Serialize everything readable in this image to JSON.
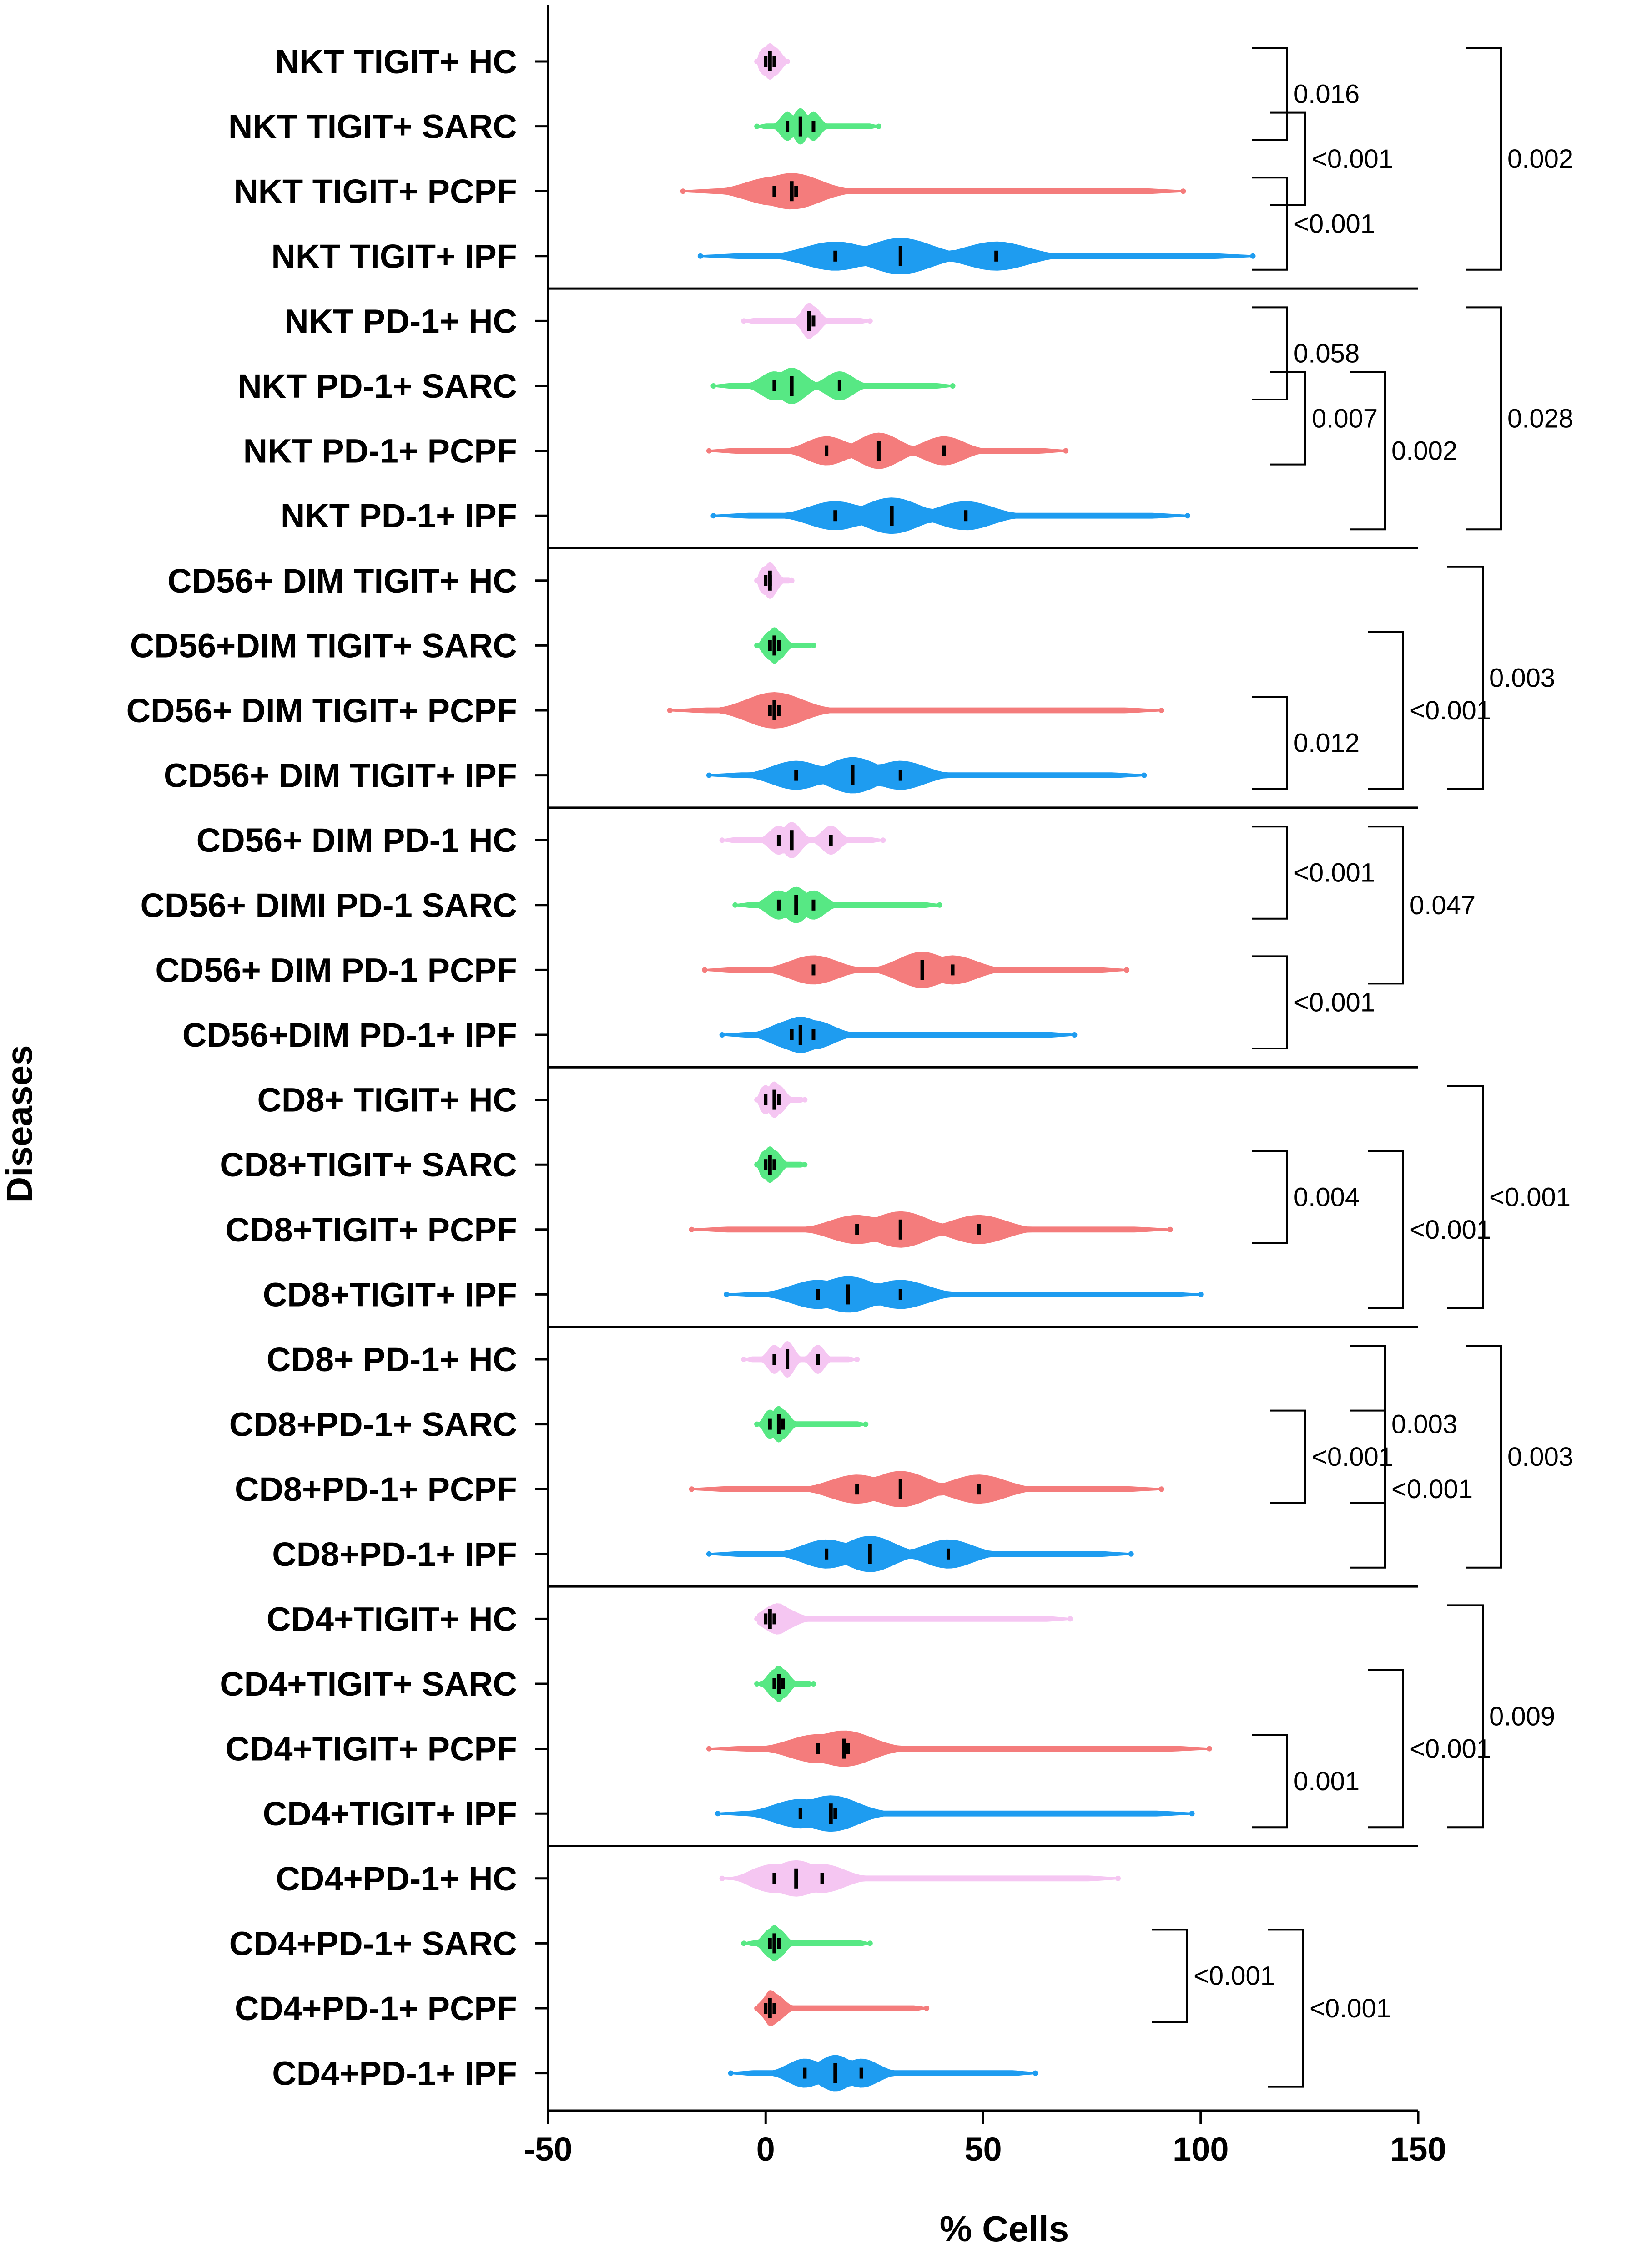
{
  "chart_data": {
    "type": "violin",
    "orientation": "horizontal",
    "xlabel": "% Cells",
    "ylabel": "Diseases",
    "xlim": [
      -50,
      150
    ],
    "xticks": [
      -50,
      0,
      50,
      100,
      150
    ],
    "series_colors": {
      "HC": "#f5c6f2",
      "SARC": "#57e884",
      "PCPF": "#f47c7c",
      "IPF": "#1e9cf0"
    },
    "groups": [
      {
        "name": "NKT TIGIT+",
        "rows": [
          {
            "label": "NKT TIGIT+ HC",
            "series": "HC",
            "range": [
              -2,
              5
            ],
            "q": [
              0,
              1,
              2
            ]
          },
          {
            "label": "NKT TIGIT+ SARC",
            "series": "SARC",
            "range": [
              -2,
              26
            ],
            "q": [
              5,
              8,
              11
            ]
          },
          {
            "label": "NKT TIGIT+ PCPF",
            "series": "PCPF",
            "range": [
              -19,
              96
            ],
            "q": [
              2,
              6,
              7
            ]
          },
          {
            "label": "NKT TIGIT+ IPF",
            "series": "IPF",
            "range": [
              -15,
              112
            ],
            "q": [
              16,
              31,
              53
            ]
          }
        ],
        "comparisons": [
          {
            "rows": [
              0,
              1
            ],
            "p": "0.016"
          },
          {
            "rows": [
              1,
              2
            ],
            "p": "<0.001"
          },
          {
            "rows": [
              2,
              3
            ],
            "p": "<0.001"
          },
          {
            "rows": [
              0,
              3
            ],
            "p": "0.002"
          }
        ]
      },
      {
        "name": "NKT PD-1+",
        "rows": [
          {
            "label": "NKT PD-1+ HC",
            "series": "HC",
            "range": [
              -5,
              24
            ],
            "q": [
              10,
              10,
              11
            ]
          },
          {
            "label": "NKT PD-1+ SARC",
            "series": "SARC",
            "range": [
              -12,
              43
            ],
            "q": [
              2,
              6,
              17
            ]
          },
          {
            "label": "NKT PD-1+ PCPF",
            "series": "PCPF",
            "range": [
              -13,
              69
            ],
            "q": [
              14,
              26,
              41
            ]
          },
          {
            "label": "NKT PD-1+ IPF",
            "series": "IPF",
            "range": [
              -12,
              97
            ],
            "q": [
              16,
              29,
              46
            ]
          }
        ],
        "comparisons": [
          {
            "rows": [
              0,
              1
            ],
            "p": "0.058"
          },
          {
            "rows": [
              1,
              2
            ],
            "p": "0.007"
          },
          {
            "rows": [
              1,
              3
            ],
            "p": "0.002"
          },
          {
            "rows": [
              0,
              3
            ],
            "p": "0.028"
          }
        ]
      },
      {
        "name": "CD56+ DIM TIGIT+",
        "rows": [
          {
            "label": "CD56+ DIM TIGIT+ HC",
            "series": "HC",
            "range": [
              -2,
              6
            ],
            "q": [
              0,
              1,
              1
            ]
          },
          {
            "label": "CD56+DIM TIGIT+ SARC",
            "series": "SARC",
            "range": [
              -2,
              11
            ],
            "q": [
              1,
              2,
              3
            ]
          },
          {
            "label": "CD56+ DIM TIGIT+ PCPF",
            "series": "PCPF",
            "range": [
              -22,
              91
            ],
            "q": [
              1,
              2,
              3
            ]
          },
          {
            "label": "CD56+ DIM TIGIT+ IPF",
            "series": "IPF",
            "range": [
              -13,
              87
            ],
            "q": [
              7,
              20,
              31
            ]
          }
        ],
        "comparisons": [
          {
            "rows": [
              2,
              3
            ],
            "p": "0.012"
          },
          {
            "rows": [
              1,
              3
            ],
            "p": "<0.001"
          },
          {
            "rows": [
              0,
              3
            ],
            "p": "0.003"
          }
        ]
      },
      {
        "name": "CD56+ DIM PD-1",
        "rows": [
          {
            "label": "CD56+ DIM PD-1 HC",
            "series": "HC",
            "range": [
              -10,
              27
            ],
            "q": [
              3,
              6,
              15
            ]
          },
          {
            "label": "CD56+ DIMI PD-1 SARC",
            "series": "SARC",
            "range": [
              -7,
              40
            ],
            "q": [
              3,
              7,
              11
            ]
          },
          {
            "label": "CD56+ DIM PD-1 PCPF",
            "series": "PCPF",
            "range": [
              -14,
              83
            ],
            "q": [
              11,
              36,
              43
            ]
          },
          {
            "label": "CD56+DIM PD-1+ IPF",
            "series": "IPF",
            "range": [
              -10,
              71
            ],
            "q": [
              6,
              8,
              11
            ]
          }
        ],
        "comparisons": [
          {
            "rows": [
              0,
              1
            ],
            "p": "<0.001"
          },
          {
            "rows": [
              0,
              2
            ],
            "p": "0.047"
          },
          {
            "rows": [
              2,
              3
            ],
            "p": "<0.001"
          }
        ]
      },
      {
        "name": "CD8+ TIGIT+",
        "rows": [
          {
            "label": "CD8+ TIGIT+ HC",
            "series": "HC",
            "range": [
              -2,
              9
            ],
            "q": [
              0,
              2,
              3
            ]
          },
          {
            "label": "CD8+TIGIT+ SARC",
            "series": "SARC",
            "range": [
              -2,
              9
            ],
            "q": [
              0,
              1,
              2
            ]
          },
          {
            "label": "CD8+TIGIT+ PCPF",
            "series": "PCPF",
            "range": [
              -17,
              93
            ],
            "q": [
              21,
              31,
              49
            ]
          },
          {
            "label": "CD8+TIGIT+ IPF",
            "series": "IPF",
            "range": [
              -9,
              100
            ],
            "q": [
              12,
              19,
              31
            ]
          }
        ],
        "comparisons": [
          {
            "rows": [
              1,
              2
            ],
            "p": "0.004"
          },
          {
            "rows": [
              1,
              3
            ],
            "p": "<0.001"
          },
          {
            "rows": [
              0,
              3
            ],
            "p": "<0.001"
          }
        ]
      },
      {
        "name": "CD8+ PD-1+",
        "rows": [
          {
            "label": "CD8+ PD-1+ HC",
            "series": "HC",
            "range": [
              -5,
              21
            ],
            "q": [
              2,
              5,
              12
            ]
          },
          {
            "label": "CD8+PD-1+ SARC",
            "series": "SARC",
            "range": [
              -2,
              23
            ],
            "q": [
              1,
              3,
              4
            ]
          },
          {
            "label": "CD8+PD-1+ PCPF",
            "series": "PCPF",
            "range": [
              -17,
              91
            ],
            "q": [
              21,
              31,
              49
            ]
          },
          {
            "label": "CD8+PD-1+ IPF",
            "series": "IPF",
            "range": [
              -13,
              84
            ],
            "q": [
              14,
              24,
              42
            ]
          }
        ],
        "comparisons": [
          {
            "rows": [
              1,
              3
            ],
            "p": "<0.001"
          },
          {
            "rows": [
              1,
              2
            ],
            "p": "<0.001"
          },
          {
            "rows": [
              0,
              2
            ],
            "p": "0.003"
          },
          {
            "rows": [
              0,
              3
            ],
            "p": "0.003"
          }
        ]
      },
      {
        "name": "CD4+TIGIT+",
        "rows": [
          {
            "label": "CD4+TIGIT+ HC",
            "series": "HC",
            "range": [
              -2,
              70
            ],
            "q": [
              0,
              1,
              2
            ]
          },
          {
            "label": "CD4+TIGIT+ SARC",
            "series": "SARC",
            "range": [
              -2,
              11
            ],
            "q": [
              2,
              3,
              4
            ]
          },
          {
            "label": "CD4+TIGIT+ PCPF",
            "series": "PCPF",
            "range": [
              -13,
              102
            ],
            "q": [
              12,
              18,
              19
            ]
          },
          {
            "label": "CD4+TIGIT+ IPF",
            "series": "IPF",
            "range": [
              -11,
              98
            ],
            "q": [
              8,
              15,
              16
            ]
          }
        ],
        "comparisons": [
          {
            "rows": [
              2,
              3
            ],
            "p": "0.001"
          },
          {
            "rows": [
              1,
              3
            ],
            "p": "<0.001"
          },
          {
            "rows": [
              0,
              3
            ],
            "p": "0.009"
          }
        ]
      },
      {
        "name": "CD4+PD-1+",
        "rows": [
          {
            "label": "CD4+PD-1+ HC",
            "series": "HC",
            "range": [
              -10,
              81
            ],
            "q": [
              2,
              7,
              13
            ]
          },
          {
            "label": "CD4+PD-1+ SARC",
            "series": "SARC",
            "range": [
              -5,
              24
            ],
            "q": [
              1,
              2,
              3
            ]
          },
          {
            "label": "CD4+PD-1+ PCPF",
            "series": "PCPF",
            "range": [
              -2,
              37
            ],
            "q": [
              0,
              1,
              2
            ]
          },
          {
            "label": "CD4+PD-1+ IPF",
            "series": "IPF",
            "range": [
              -8,
              62
            ],
            "q": [
              9,
              16,
              22
            ]
          }
        ],
        "comparisons": [
          {
            "rows": [
              1,
              2
            ],
            "p": "<0.001"
          },
          {
            "rows": [
              1,
              3
            ],
            "p": "<0.001"
          }
        ]
      }
    ]
  }
}
